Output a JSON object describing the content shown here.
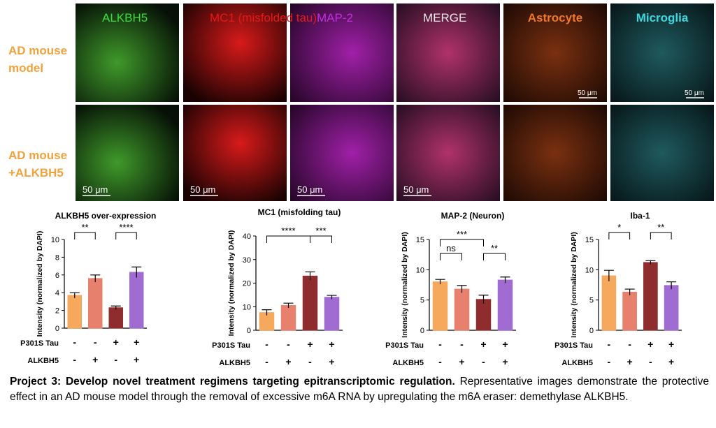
{
  "figure": {
    "column_labels": [
      "ALKBH5",
      "MC1 (misfolded tau)",
      "MAP-2",
      "MERGE",
      "Astrocyte",
      "Microglia"
    ],
    "row_labels": [
      [
        "AD mouse",
        "model"
      ],
      [
        "AD mouse",
        "+ALKBH5"
      ]
    ],
    "scale_bar": "50 μm"
  },
  "chart_data": [
    {
      "type": "bar",
      "title": "ALKBH5 over-expression",
      "y_label": "Intensity (normalized by DAPI)",
      "values": [
        3.7,
        5.6,
        2.3,
        6.3
      ],
      "errors": [
        0.3,
        0.4,
        0.2,
        0.6
      ],
      "colors": [
        "#f6a85c",
        "#e7806c",
        "#8e2c2e",
        "#a06cd2"
      ],
      "ylim": [
        0,
        10
      ],
      "yticks": [
        0,
        2,
        4,
        6,
        8,
        10
      ],
      "significance": [
        "**",
        "****"
      ],
      "conditions": [
        {
          "name": "P301S Tau",
          "values": [
            "-",
            "-",
            "+",
            "+"
          ]
        },
        {
          "name": "ALKBH5",
          "values": [
            "-",
            "+",
            "-",
            "+"
          ]
        }
      ]
    },
    {
      "type": "bar",
      "title": "MC1 (misfolding tau)",
      "y_label": "Intensity (normalized by DAPI)",
      "values": [
        7.5,
        10.5,
        23,
        14
      ],
      "errors": [
        1.2,
        1.0,
        1.8,
        0.8
      ],
      "colors": [
        "#f6a85c",
        "#e7806c",
        "#8e2c2e",
        "#a06cd2"
      ],
      "ylim": [
        0,
        40
      ],
      "yticks": [
        0,
        10,
        20,
        30,
        40
      ],
      "significance": [
        "****",
        "***"
      ],
      "conditions": [
        {
          "name": "P301S Tau",
          "values": [
            "-",
            "-",
            "+",
            "+"
          ]
        },
        {
          "name": "ALKBH5",
          "values": [
            "-",
            "+",
            "-",
            "+"
          ]
        }
      ]
    },
    {
      "type": "bar",
      "title": "MAP-2 (Neuron)",
      "y_label": "Intensity (normalized by DAPI)",
      "values": [
        8,
        6.8,
        5.1,
        8.3
      ],
      "errors": [
        0.4,
        0.6,
        0.7,
        0.5
      ],
      "colors": [
        "#f6a85c",
        "#e7806c",
        "#8e2c2e",
        "#a06cd2"
      ],
      "ylim": [
        0,
        15
      ],
      "yticks": [
        0,
        5,
        10,
        15
      ],
      "significance": [
        "ns",
        "***",
        "**"
      ],
      "conditions": [
        {
          "name": "P301S Tau",
          "values": [
            "-",
            "-",
            "+",
            "+"
          ]
        },
        {
          "name": "ALKBH5",
          "values": [
            "-",
            "+",
            "-",
            "+"
          ]
        }
      ]
    },
    {
      "type": "bar",
      "title": "Iba-1",
      "y_label": "Intensity (normalized by DAPI)",
      "values": [
        9,
        6.3,
        11.2,
        7.4
      ],
      "errors": [
        0.9,
        0.5,
        0.3,
        0.6
      ],
      "colors": [
        "#f6a85c",
        "#e7806c",
        "#8e2c2e",
        "#a06cd2"
      ],
      "ylim": [
        0,
        15
      ],
      "yticks": [
        0,
        5,
        10,
        15
      ],
      "significance": [
        "*",
        "**"
      ],
      "conditions": [
        {
          "name": "P301S Tau",
          "values": [
            "-",
            "-",
            "+",
            "+"
          ]
        },
        {
          "name": "ALKBH5",
          "values": [
            "-",
            "+",
            "-",
            "+"
          ]
        }
      ]
    }
  ],
  "caption": {
    "bold": "Project 3: Develop novel treatment regimens targeting epitranscriptomic regulation.",
    "text": "Representative images demonstrate the protective effect in an AD mouse model through the removal of excessive m6A RNA by upregulating the m6A eraser: demethylase ALKBH5."
  }
}
